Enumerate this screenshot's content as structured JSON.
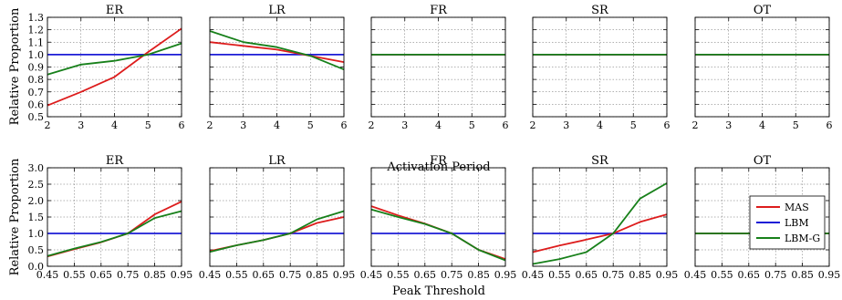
{
  "colors": {
    "MAS": "#dd1c1c",
    "LBM": "#1c1cd6",
    "LBM-G": "#17801a"
  },
  "legend": {
    "entries": [
      "MAS",
      "LBM",
      "LBM-G"
    ],
    "placement": "top-right of last bottom panel"
  },
  "rows": [
    {
      "xlabel": "Activation Period",
      "ylabel": "Relative Proportion",
      "xticks": [
        "2",
        "3",
        "4",
        "5",
        "6"
      ],
      "yticks": [
        "0.5",
        "0.6",
        "0.7",
        "0.8",
        "0.9",
        "1.0",
        "1.1",
        "1.2",
        "1.3"
      ]
    },
    {
      "xlabel": "Peak Threshold",
      "ylabel": "Relative Proportion",
      "xticks": [
        "0.45",
        "0.55",
        "0.65",
        "0.75",
        "0.85",
        "0.95"
      ],
      "yticks": [
        "0.0",
        "0.5",
        "1.0",
        "1.5",
        "2.0",
        "2.5",
        "3.0"
      ]
    }
  ],
  "chart_data": [
    {
      "type": "line",
      "title": "ER",
      "row": 0,
      "col": 0,
      "xlabel": "Activation Period",
      "ylabel": "Relative Proportion",
      "x": [
        2,
        3,
        4,
        5,
        6
      ],
      "xlim": [
        2,
        6
      ],
      "ylim": [
        0.5,
        1.3
      ],
      "grid": true,
      "series": [
        {
          "name": "MAS",
          "values": [
            0.59,
            0.7,
            0.82,
            1.02,
            1.21
          ]
        },
        {
          "name": "LBM",
          "values": [
            1.0,
            1.0,
            1.0,
            1.0,
            1.0
          ]
        },
        {
          "name": "LBM-G",
          "values": [
            0.84,
            0.92,
            0.95,
            1.0,
            1.09
          ]
        }
      ]
    },
    {
      "type": "line",
      "title": "LR",
      "row": 0,
      "col": 1,
      "x": [
        2,
        3,
        4,
        5,
        6
      ],
      "xlim": [
        2,
        6
      ],
      "ylim": [
        0.5,
        1.3
      ],
      "grid": true,
      "series": [
        {
          "name": "MAS",
          "values": [
            1.1,
            1.07,
            1.04,
            0.99,
            0.94
          ]
        },
        {
          "name": "LBM",
          "values": [
            1.0,
            1.0,
            1.0,
            1.0,
            1.0
          ]
        },
        {
          "name": "LBM-G",
          "values": [
            1.19,
            1.1,
            1.06,
            0.99,
            0.88
          ]
        }
      ]
    },
    {
      "type": "line",
      "title": "FR",
      "row": 0,
      "col": 2,
      "x": [
        2,
        3,
        4,
        5,
        6
      ],
      "xlim": [
        2,
        6
      ],
      "ylim": [
        0.5,
        1.3
      ],
      "grid": true,
      "series": [
        {
          "name": "MAS",
          "values": [
            1.0,
            1.0,
            1.0,
            1.0,
            1.0
          ]
        },
        {
          "name": "LBM",
          "values": [
            1.0,
            1.0,
            1.0,
            1.0,
            1.0
          ]
        },
        {
          "name": "LBM-G",
          "values": [
            1.0,
            1.0,
            1.0,
            1.0,
            1.0
          ]
        }
      ]
    },
    {
      "type": "line",
      "title": "SR",
      "row": 0,
      "col": 3,
      "x": [
        2,
        3,
        4,
        5,
        6
      ],
      "xlim": [
        2,
        6
      ],
      "ylim": [
        0.5,
        1.3
      ],
      "grid": true,
      "series": [
        {
          "name": "MAS",
          "values": [
            1.0,
            1.0,
            1.0,
            1.0,
            1.0
          ]
        },
        {
          "name": "LBM",
          "values": [
            1.0,
            1.0,
            1.0,
            1.0,
            1.0
          ]
        },
        {
          "name": "LBM-G",
          "values": [
            1.0,
            1.0,
            1.0,
            1.0,
            1.0
          ]
        }
      ]
    },
    {
      "type": "line",
      "title": "OT",
      "row": 0,
      "col": 4,
      "x": [
        2,
        3,
        4,
        5,
        6
      ],
      "xlim": [
        2,
        6
      ],
      "ylim": [
        0.5,
        1.3
      ],
      "grid": true,
      "series": [
        {
          "name": "MAS",
          "values": [
            1.0,
            1.0,
            1.0,
            1.0,
            1.0
          ]
        },
        {
          "name": "LBM",
          "values": [
            1.0,
            1.0,
            1.0,
            1.0,
            1.0
          ]
        },
        {
          "name": "LBM-G",
          "values": [
            1.0,
            1.0,
            1.0,
            1.0,
            1.0
          ]
        }
      ]
    },
    {
      "type": "line",
      "title": "ER",
      "row": 1,
      "col": 0,
      "xlabel": "Peak Threshold",
      "ylabel": "Relative Proportion",
      "x": [
        0.45,
        0.55,
        0.65,
        0.75,
        0.85,
        0.95
      ],
      "xlim": [
        0.45,
        0.95
      ],
      "ylim": [
        0.0,
        3.0
      ],
      "grid": true,
      "series": [
        {
          "name": "MAS",
          "values": [
            0.3,
            0.52,
            0.73,
            1.0,
            1.58,
            1.97
          ]
        },
        {
          "name": "LBM",
          "values": [
            1.0,
            1.0,
            1.0,
            1.0,
            1.0,
            1.0
          ]
        },
        {
          "name": "LBM-G",
          "values": [
            0.31,
            0.54,
            0.74,
            1.0,
            1.47,
            1.68
          ]
        }
      ]
    },
    {
      "type": "line",
      "title": "LR",
      "row": 1,
      "col": 1,
      "x": [
        0.45,
        0.55,
        0.65,
        0.75,
        0.85,
        0.95
      ],
      "xlim": [
        0.45,
        0.95
      ],
      "ylim": [
        0.0,
        3.0
      ],
      "grid": true,
      "series": [
        {
          "name": "MAS",
          "values": [
            0.46,
            0.64,
            0.8,
            1.0,
            1.32,
            1.5
          ]
        },
        {
          "name": "LBM",
          "values": [
            1.0,
            1.0,
            1.0,
            1.0,
            1.0,
            1.0
          ]
        },
        {
          "name": "LBM-G",
          "values": [
            0.44,
            0.64,
            0.8,
            1.0,
            1.43,
            1.68
          ]
        }
      ]
    },
    {
      "type": "line",
      "title": "FR",
      "row": 1,
      "col": 2,
      "x": [
        0.45,
        0.55,
        0.65,
        0.75,
        0.85,
        0.95
      ],
      "xlim": [
        0.45,
        0.95
      ],
      "ylim": [
        0.0,
        3.0
      ],
      "grid": true,
      "series": [
        {
          "name": "MAS",
          "values": [
            1.83,
            1.55,
            1.3,
            1.0,
            0.5,
            0.22
          ]
        },
        {
          "name": "LBM",
          "values": [
            1.0,
            1.0,
            1.0,
            1.0,
            1.0,
            1.0
          ]
        },
        {
          "name": "LBM-G",
          "values": [
            1.73,
            1.5,
            1.29,
            1.0,
            0.5,
            0.18
          ]
        }
      ]
    },
    {
      "type": "line",
      "title": "SR",
      "row": 1,
      "col": 3,
      "x": [
        0.45,
        0.55,
        0.65,
        0.75,
        0.85,
        0.95
      ],
      "xlim": [
        0.45,
        0.95
      ],
      "ylim": [
        0.0,
        3.0
      ],
      "grid": true,
      "series": [
        {
          "name": "MAS",
          "values": [
            0.43,
            0.63,
            0.81,
            1.0,
            1.35,
            1.58
          ]
        },
        {
          "name": "LBM",
          "values": [
            1.0,
            1.0,
            1.0,
            1.0,
            1.0,
            1.0
          ]
        },
        {
          "name": "LBM-G",
          "values": [
            0.07,
            0.22,
            0.43,
            1.0,
            2.06,
            2.53
          ]
        }
      ]
    },
    {
      "type": "line",
      "title": "OT",
      "row": 1,
      "col": 4,
      "x": [
        0.45,
        0.55,
        0.65,
        0.75,
        0.85,
        0.95
      ],
      "xlim": [
        0.45,
        0.95
      ],
      "ylim": [
        0.0,
        3.0
      ],
      "grid": true,
      "series": [
        {
          "name": "MAS",
          "values": [
            1.0,
            1.0,
            1.0,
            1.0,
            1.0,
            1.0
          ]
        },
        {
          "name": "LBM",
          "values": [
            1.0,
            1.0,
            1.0,
            1.0,
            1.0,
            1.0
          ]
        },
        {
          "name": "LBM-G",
          "values": [
            1.0,
            1.0,
            1.0,
            1.0,
            1.0,
            1.0
          ]
        }
      ]
    }
  ]
}
